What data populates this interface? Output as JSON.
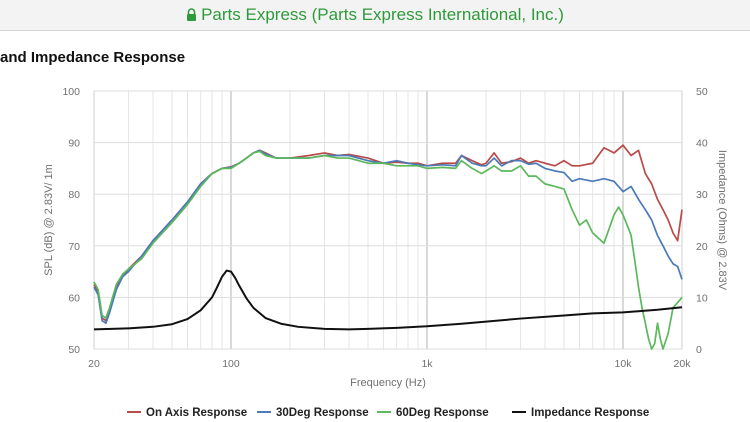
{
  "browser": {
    "site_label": "Parts Express (Parts Express International, Inc.)",
    "secure_color": "#2f9a3b"
  },
  "page": {
    "title": "and Impedance Response"
  },
  "chart_data": {
    "type": "line",
    "title": "",
    "xlabel": "Frequency (Hz)",
    "ylabel": "SPL (dB) @ 2.83V/ 1m",
    "y2label": "Impedance (Ohms) @ 2.83V",
    "x_scale": "log",
    "xlim": [
      20,
      20000
    ],
    "ylim": [
      50,
      100
    ],
    "y2lim": [
      0,
      50
    ],
    "grid": true,
    "legend_position": "bottom",
    "x_ticks": [
      {
        "value": 20,
        "label": "20"
      },
      {
        "value": 100,
        "label": "100"
      },
      {
        "value": 1000,
        "label": "1k"
      },
      {
        "value": 10000,
        "label": "10k"
      },
      {
        "value": 20000,
        "label": "20k"
      }
    ],
    "y_ticks": [
      50,
      60,
      70,
      80,
      90,
      100
    ],
    "y2_ticks": [
      0,
      10,
      20,
      30,
      40,
      50
    ],
    "series": [
      {
        "name": "On Axis Response",
        "color": "#b94a48",
        "axis": "left",
        "points": [
          [
            20,
            62.5
          ],
          [
            21,
            61
          ],
          [
            22,
            56
          ],
          [
            23,
            55.5
          ],
          [
            24,
            57.5
          ],
          [
            26,
            62
          ],
          [
            28,
            64
          ],
          [
            30,
            65.5
          ],
          [
            35,
            68
          ],
          [
            40,
            71
          ],
          [
            50,
            75
          ],
          [
            60,
            78.5
          ],
          [
            70,
            82
          ],
          [
            80,
            84
          ],
          [
            90,
            85
          ],
          [
            100,
            85.3
          ],
          [
            110,
            86
          ],
          [
            120,
            87
          ],
          [
            130,
            88
          ],
          [
            140,
            88.5
          ],
          [
            150,
            88
          ],
          [
            170,
            87
          ],
          [
            200,
            87
          ],
          [
            250,
            87.5
          ],
          [
            300,
            88
          ],
          [
            350,
            87.5
          ],
          [
            400,
            87.7
          ],
          [
            500,
            87
          ],
          [
            600,
            86
          ],
          [
            700,
            86.2
          ],
          [
            800,
            86
          ],
          [
            900,
            86
          ],
          [
            1000,
            85.5
          ],
          [
            1200,
            86
          ],
          [
            1400,
            86
          ],
          [
            1500,
            87.5
          ],
          [
            1700,
            86.5
          ],
          [
            1900,
            85.7
          ],
          [
            2000,
            86
          ],
          [
            2200,
            88
          ],
          [
            2400,
            86
          ],
          [
            2700,
            86.3
          ],
          [
            3000,
            87
          ],
          [
            3300,
            86
          ],
          [
            3600,
            86.5
          ],
          [
            4000,
            86
          ],
          [
            4500,
            85.5
          ],
          [
            5000,
            86.5
          ],
          [
            5500,
            85.5
          ],
          [
            6000,
            85.5
          ],
          [
            7000,
            86
          ],
          [
            8000,
            89
          ],
          [
            9000,
            88
          ],
          [
            10000,
            89.5
          ],
          [
            11000,
            87.5
          ],
          [
            12000,
            88.5
          ],
          [
            13000,
            84
          ],
          [
            14000,
            82
          ],
          [
            15000,
            79
          ],
          [
            16000,
            77
          ],
          [
            17000,
            75
          ],
          [
            18000,
            72.5
          ],
          [
            19000,
            71
          ],
          [
            20000,
            77
          ]
        ]
      },
      {
        "name": "30Deg Response",
        "color": "#4a7ab8",
        "axis": "left",
        "points": [
          [
            20,
            62
          ],
          [
            21,
            60.5
          ],
          [
            22,
            55.5
          ],
          [
            23,
            55
          ],
          [
            24,
            57
          ],
          [
            26,
            61.5
          ],
          [
            28,
            64
          ],
          [
            30,
            65
          ],
          [
            35,
            68
          ],
          [
            40,
            71
          ],
          [
            50,
            75
          ],
          [
            60,
            78.5
          ],
          [
            70,
            82
          ],
          [
            80,
            84
          ],
          [
            90,
            85
          ],
          [
            100,
            85.2
          ],
          [
            110,
            86
          ],
          [
            120,
            87
          ],
          [
            130,
            88
          ],
          [
            140,
            88.5
          ],
          [
            150,
            87.8
          ],
          [
            170,
            87
          ],
          [
            200,
            87
          ],
          [
            250,
            87
          ],
          [
            300,
            87.5
          ],
          [
            350,
            87.5
          ],
          [
            400,
            87.5
          ],
          [
            500,
            86.5
          ],
          [
            600,
            86
          ],
          [
            700,
            86.5
          ],
          [
            800,
            86
          ],
          [
            900,
            85.7
          ],
          [
            1000,
            85.5
          ],
          [
            1200,
            85.7
          ],
          [
            1400,
            85.5
          ],
          [
            1500,
            87.5
          ],
          [
            1700,
            86
          ],
          [
            1900,
            85.5
          ],
          [
            2000,
            85.5
          ],
          [
            2200,
            87
          ],
          [
            2400,
            85.5
          ],
          [
            2700,
            86.5
          ],
          [
            3000,
            86.5
          ],
          [
            3300,
            85.8
          ],
          [
            3600,
            86
          ],
          [
            4000,
            85
          ],
          [
            4500,
            84.5
          ],
          [
            5000,
            84.2
          ],
          [
            5500,
            82.5
          ],
          [
            6000,
            83
          ],
          [
            7000,
            82.5
          ],
          [
            8000,
            83
          ],
          [
            9000,
            82.5
          ],
          [
            10000,
            80.5
          ],
          [
            11000,
            81.5
          ],
          [
            12000,
            79
          ],
          [
            13000,
            77
          ],
          [
            14000,
            75
          ],
          [
            15000,
            72
          ],
          [
            16000,
            70
          ],
          [
            17000,
            68
          ],
          [
            18000,
            66.5
          ],
          [
            19000,
            66
          ],
          [
            20000,
            63.5
          ]
        ]
      },
      {
        "name": "60Deg Response",
        "color": "#5cb85c",
        "axis": "left",
        "points": [
          [
            20,
            63
          ],
          [
            21,
            61.5
          ],
          [
            22,
            56.5
          ],
          [
            23,
            56
          ],
          [
            24,
            58
          ],
          [
            26,
            62.5
          ],
          [
            28,
            64.5
          ],
          [
            30,
            65.5
          ],
          [
            35,
            67.5
          ],
          [
            40,
            70.5
          ],
          [
            50,
            74.5
          ],
          [
            60,
            78
          ],
          [
            70,
            81.5
          ],
          [
            80,
            84
          ],
          [
            90,
            85
          ],
          [
            100,
            85
          ],
          [
            110,
            86
          ],
          [
            120,
            87
          ],
          [
            130,
            88
          ],
          [
            140,
            88.3
          ],
          [
            150,
            87.5
          ],
          [
            170,
            87
          ],
          [
            200,
            87
          ],
          [
            250,
            87
          ],
          [
            300,
            87.5
          ],
          [
            350,
            87
          ],
          [
            400,
            87
          ],
          [
            500,
            86
          ],
          [
            600,
            86
          ],
          [
            700,
            85.5
          ],
          [
            800,
            85.5
          ],
          [
            900,
            85.5
          ],
          [
            1000,
            85
          ],
          [
            1200,
            85.2
          ],
          [
            1400,
            85
          ],
          [
            1500,
            86.5
          ],
          [
            1700,
            85
          ],
          [
            1900,
            84
          ],
          [
            2000,
            84.5
          ],
          [
            2200,
            85.5
          ],
          [
            2400,
            84.5
          ],
          [
            2700,
            84.5
          ],
          [
            3000,
            85.5
          ],
          [
            3300,
            83.5
          ],
          [
            3600,
            83.5
          ],
          [
            4000,
            82
          ],
          [
            4500,
            81.5
          ],
          [
            5000,
            81
          ],
          [
            5500,
            77
          ],
          [
            6000,
            74
          ],
          [
            6500,
            75
          ],
          [
            7000,
            72.5
          ],
          [
            8000,
            70.5
          ],
          [
            9000,
            76
          ],
          [
            9500,
            77.5
          ],
          [
            10000,
            76
          ],
          [
            10500,
            74
          ],
          [
            11000,
            72
          ],
          [
            11500,
            67
          ],
          [
            12000,
            62
          ],
          [
            12500,
            58
          ],
          [
            13000,
            55
          ],
          [
            13500,
            52
          ],
          [
            14000,
            50
          ],
          [
            14500,
            51
          ],
          [
            15000,
            55
          ],
          [
            15500,
            52
          ],
          [
            16000,
            50
          ],
          [
            17000,
            53
          ],
          [
            18000,
            58
          ],
          [
            19000,
            59
          ],
          [
            20000,
            60
          ]
        ]
      },
      {
        "name": "Impedance Response",
        "color": "#111111",
        "axis": "right",
        "points": [
          [
            20,
            3.8
          ],
          [
            30,
            4
          ],
          [
            40,
            4.3
          ],
          [
            50,
            4.8
          ],
          [
            60,
            5.8
          ],
          [
            70,
            7.5
          ],
          [
            80,
            10
          ],
          [
            85,
            12
          ],
          [
            90,
            14
          ],
          [
            95,
            15.2
          ],
          [
            100,
            15
          ],
          [
            105,
            13.8
          ],
          [
            110,
            12.3
          ],
          [
            120,
            9.8
          ],
          [
            130,
            8
          ],
          [
            150,
            6
          ],
          [
            180,
            4.9
          ],
          [
            220,
            4.3
          ],
          [
            300,
            3.9
          ],
          [
            400,
            3.8
          ],
          [
            500,
            3.9
          ],
          [
            700,
            4.1
          ],
          [
            1000,
            4.4
          ],
          [
            1500,
            4.9
          ],
          [
            2000,
            5.3
          ],
          [
            3000,
            5.9
          ],
          [
            5000,
            6.5
          ],
          [
            7000,
            6.9
          ],
          [
            10000,
            7.1
          ],
          [
            15000,
            7.6
          ],
          [
            20000,
            8.1
          ]
        ]
      }
    ]
  }
}
